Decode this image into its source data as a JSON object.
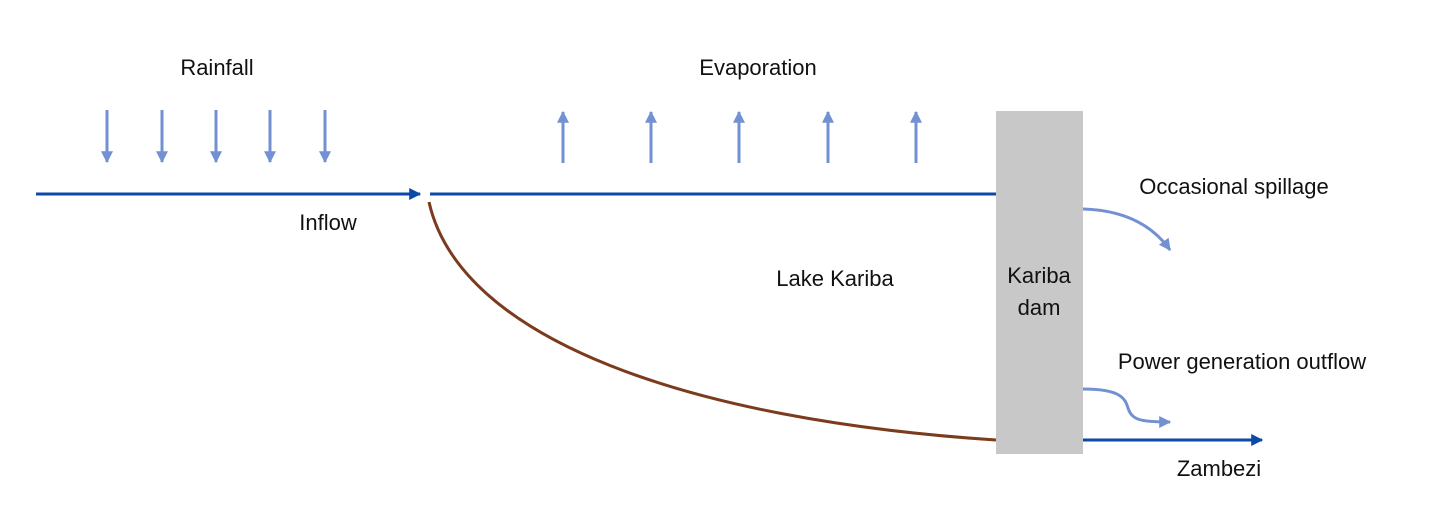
{
  "labels": {
    "rainfall": "Rainfall",
    "evaporation": "Evaporation",
    "inflow": "Inflow",
    "lake": "Lake Kariba",
    "dam_line1": "Kariba",
    "dam_line2": "dam",
    "spillage": "Occasional spillage",
    "power": "Power generation outflow",
    "river": "Zambezi"
  },
  "colors": {
    "water_line": "#0b4aa6",
    "arrow_light": "#7391d2",
    "lakebed": "#7b3b1c",
    "dam": "#c8c8c8",
    "text": "#111111"
  },
  "icons": {
    "rain": "down-arrow",
    "evaporation": "up-arrow"
  }
}
